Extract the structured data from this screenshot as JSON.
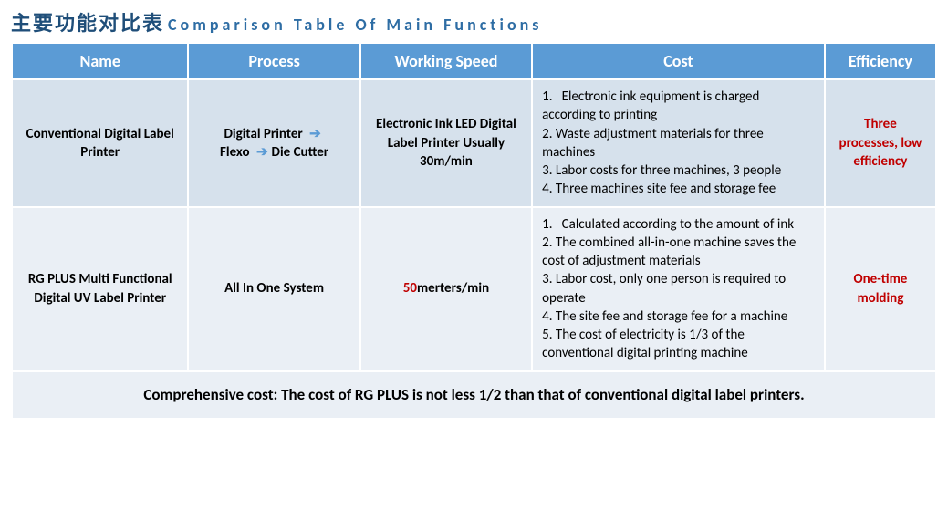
{
  "title": {
    "cn": "主要功能对比表",
    "en": "Comparison Table Of Main Functions"
  },
  "columns": [
    "Name",
    "Process",
    "Working Speed",
    "Cost",
    "Efficiency"
  ],
  "rows": [
    {
      "name": "Conventional Digital Label Printer",
      "process": {
        "p1": "Digital Printer",
        "p2": "Flexo",
        "p3": "Die Cutter"
      },
      "speed": "Electronic Ink LED Digital Label Printer Usually 30m/min",
      "cost": [
        "Electronic ink equipment is charged according to printing",
        "Waste adjustment materials for three machines",
        "Labor costs for three machines, 3 people",
        "Three machines site fee and storage fee"
      ],
      "eff": "Three processes, low efficiency"
    },
    {
      "name": "RG PLUS Multi Functional Digital UV Label Printer",
      "process_text": "All In One System",
      "speed_num": "50",
      "speed_unit": "merters/min",
      "cost": [
        "Calculated according to the amount of ink",
        "The combined all-in-one machine saves the cost of adjustment materials",
        "Labor cost, only one person is required to operate",
        "The site fee and storage fee for a machine",
        "The cost of electricity is 1/3 of the conventional digital printing machine"
      ],
      "eff": "One-time molding"
    }
  ],
  "footer": "Comprehensive cost: The cost of RG PLUS is not less 1/2 than that of conventional digital label printers.",
  "colors": {
    "header_bg": "#5b9bd5",
    "row_a_bg": "#d6e1ec",
    "row_b_bg": "#eaeff5",
    "accent_red": "#c00000",
    "title_color": "#1f4e79",
    "arrow_color": "#5b9bd5"
  }
}
